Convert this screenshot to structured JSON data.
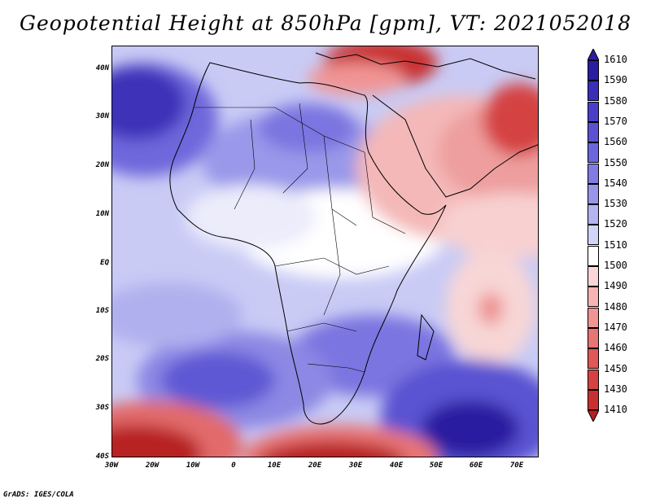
{
  "title": "Geopotential Height at 850hPa [gpm], VT: 2021052018",
  "footer": "GrADS: IGES/COLA",
  "map": {
    "projection": "lat-lon",
    "lon_range": [
      -30,
      75
    ],
    "lat_range": [
      -40,
      45
    ],
    "lat_labels": [
      "40N",
      "30N",
      "20N",
      "10N",
      "EQ",
      "10S",
      "20S",
      "30S",
      "40S"
    ],
    "lon_labels": [
      "30W",
      "20W",
      "10W",
      "0",
      "10E",
      "20E",
      "30E",
      "40E",
      "50E",
      "60E",
      "70E"
    ],
    "region": "Africa, Middle East, western Indian Ocean"
  },
  "colorbar": {
    "levels": [
      "1610",
      "1590",
      "1580",
      "1570",
      "1560",
      "1550",
      "1540",
      "1530",
      "1520",
      "1510",
      "1500",
      "1490",
      "1480",
      "1470",
      "1460",
      "1450",
      "1430",
      "1410"
    ],
    "colors": [
      "#2a1fa0",
      "#3a2fb8",
      "#4a40c8",
      "#5a52d2",
      "#6c66dc",
      "#807ce2",
      "#9896e8",
      "#b4b4f0",
      "#d2d4f8",
      "#ffffff",
      "#fbd6d6",
      "#f6b4b4",
      "#f09494",
      "#e87474",
      "#e05858",
      "#d54242",
      "#c83030",
      "#b82020"
    ]
  }
}
